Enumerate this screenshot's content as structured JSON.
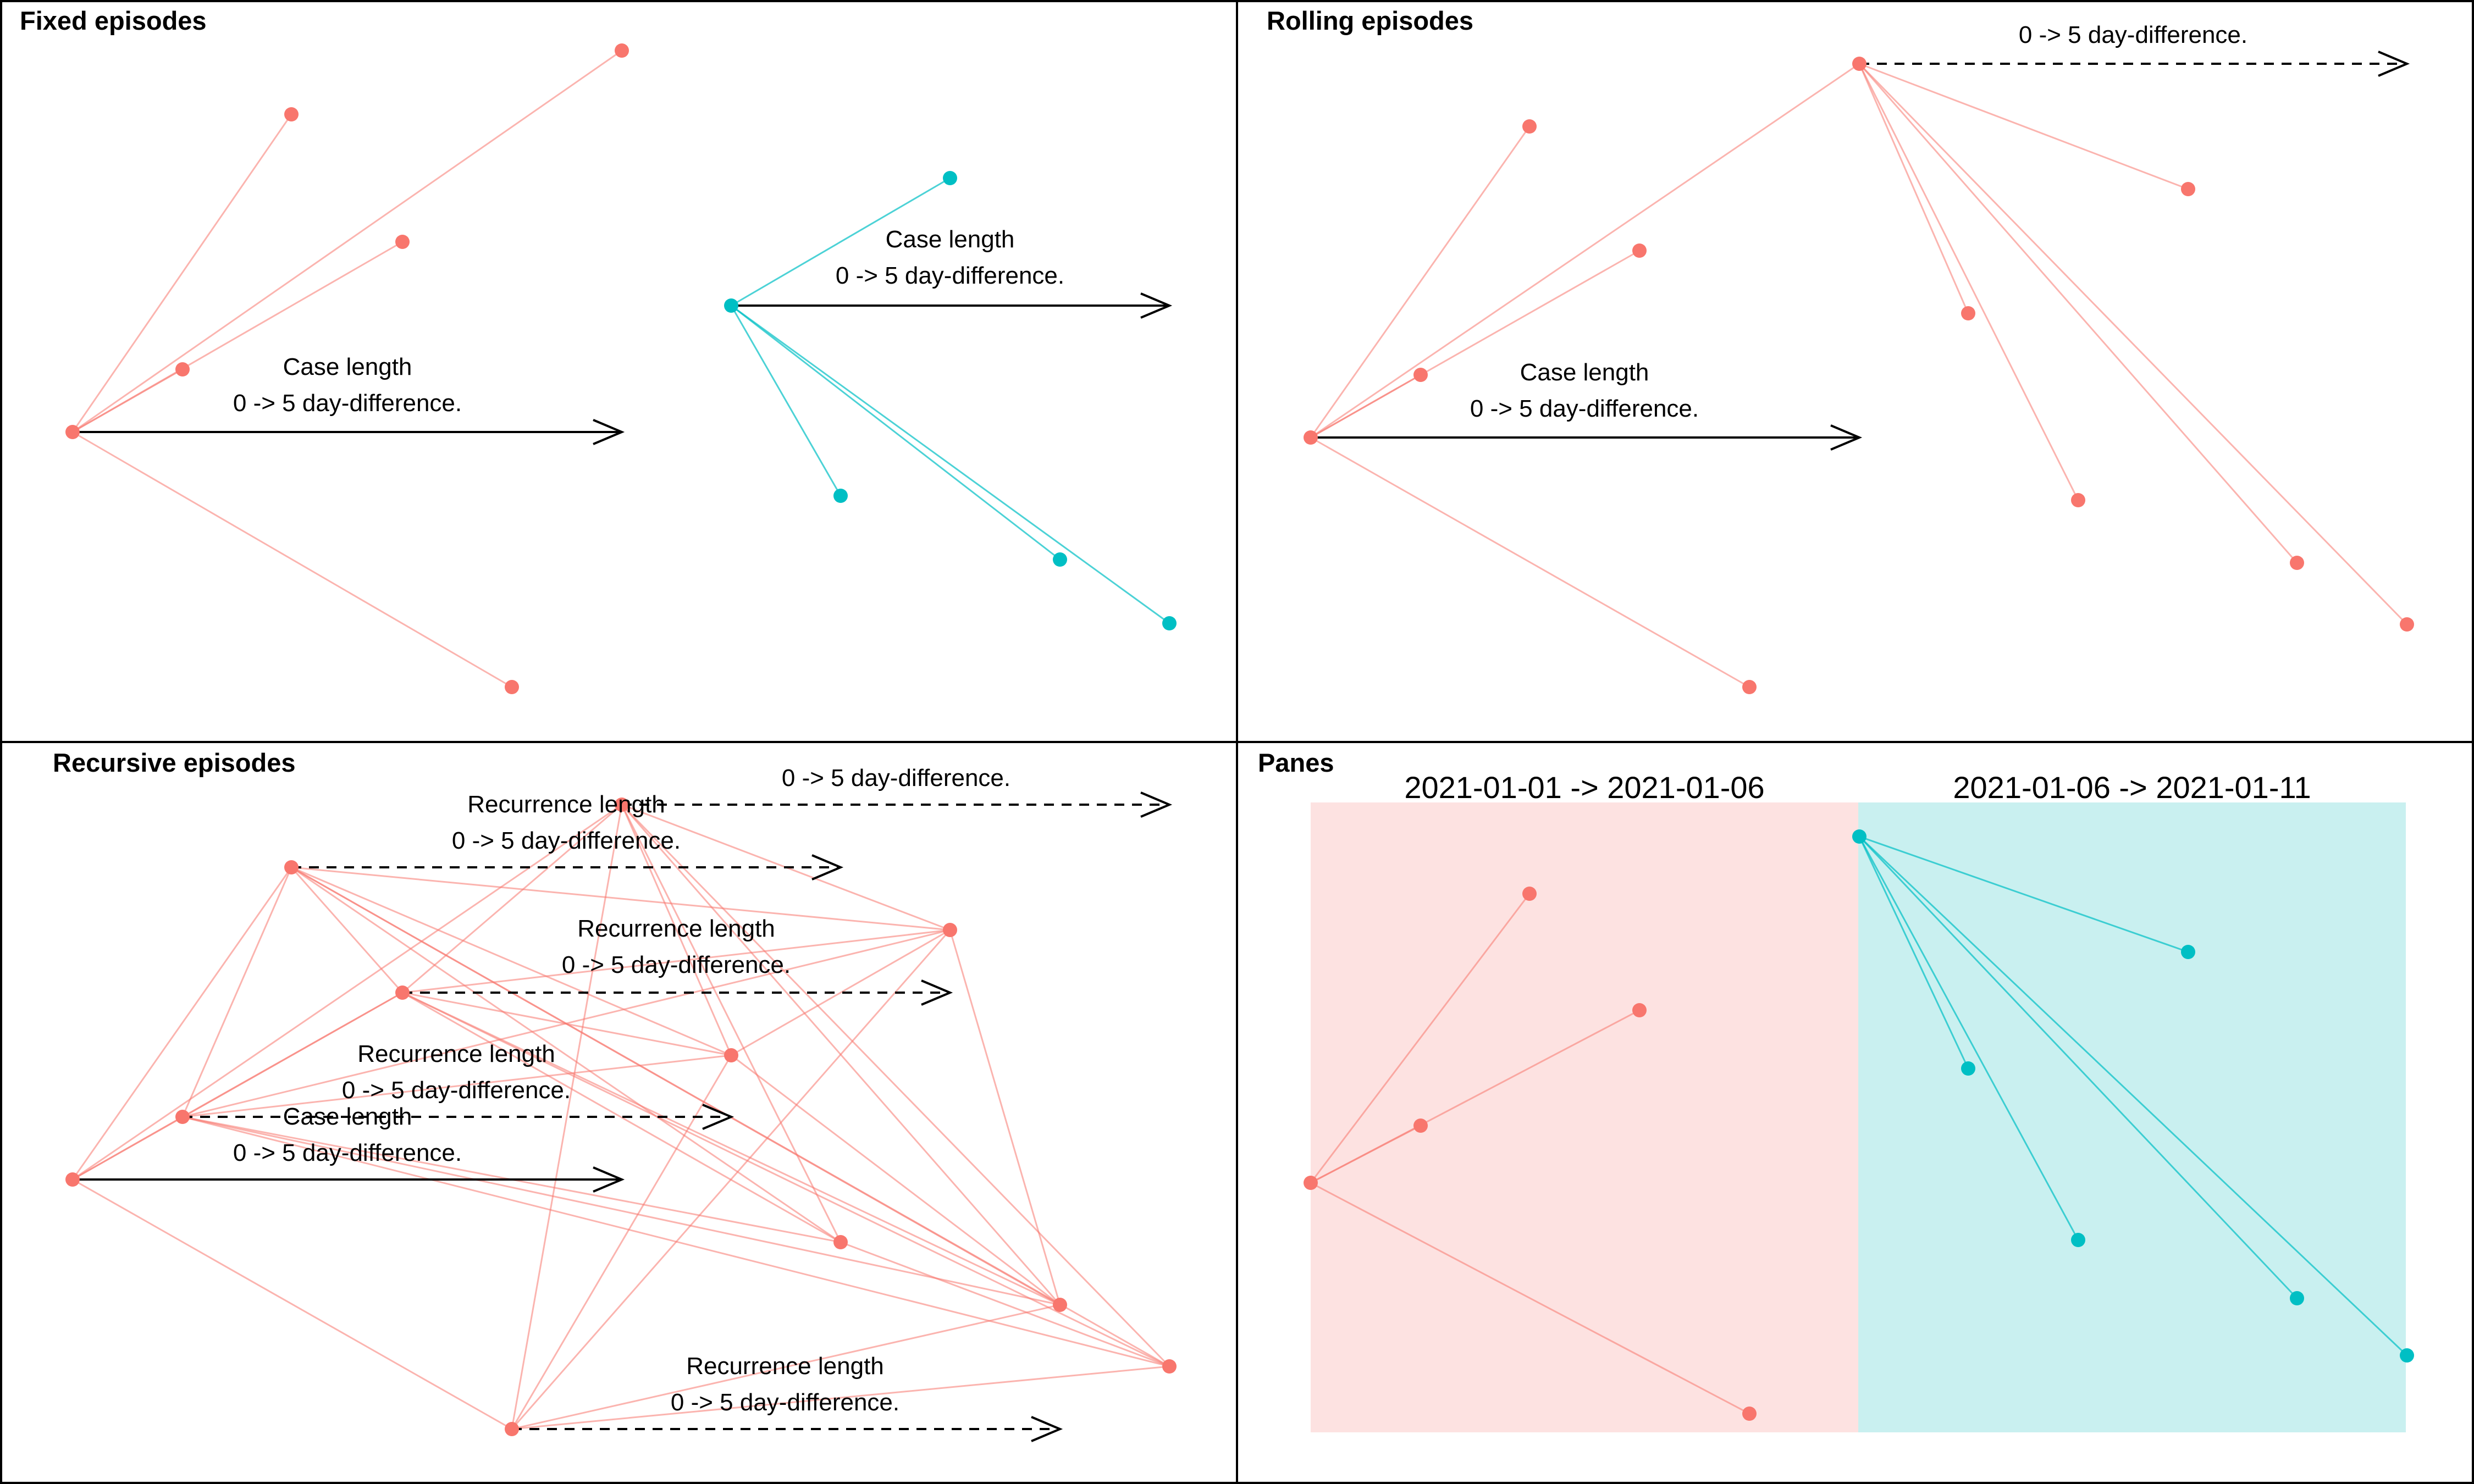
{
  "colors": {
    "episode_1": "#F8766D",
    "episode_2": "#00BFC4",
    "pane_1_fill": "#FDE2E1",
    "pane_2_fill": "#C9F0F0",
    "frame": "#000000"
  },
  "panels": {
    "fixed": {
      "title": "Fixed episodes"
    },
    "rolling": {
      "title": "Rolling episodes"
    },
    "recursive": {
      "title": "Recursive episodes"
    },
    "panes": {
      "title": "Panes"
    }
  },
  "labels": {
    "case_length": "Case length",
    "recurrence_length": "Recurrence length",
    "window": "0 -> 5 day-difference."
  },
  "panes": {
    "pane_1": "2021-01-01 -> 2021-01-06",
    "pane_2": "2021-01-06 -> 2021-01-11"
  }
}
